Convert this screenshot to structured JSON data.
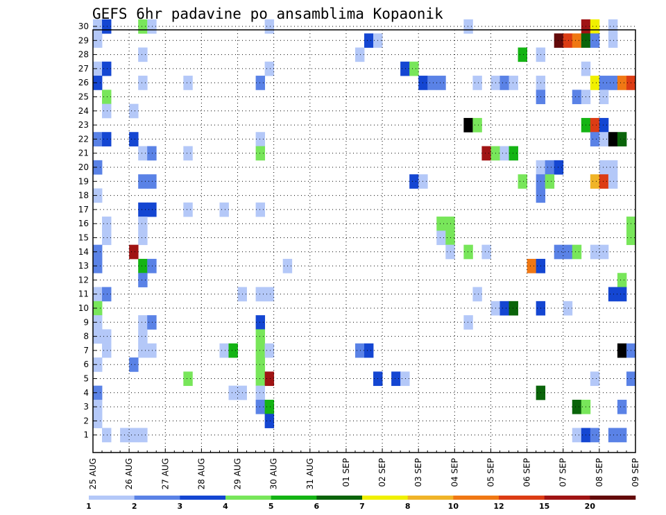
{
  "chart_data": {
    "type": "heatmap",
    "title": "GEFS 6hr padavine po ansamblima Kopaonik",
    "xlabel": "",
    "ylabel": "",
    "x_tick_labels": [
      "25 AUG",
      "26 AUG",
      "27 AUG",
      "28 AUG",
      "29 AUG",
      "30 AUG",
      "31 AUG",
      "01 SEP",
      "02 SEP",
      "03 SEP",
      "04 SEP",
      "05 SEP",
      "06 SEP",
      "07 SEP",
      "08 SEP",
      "09 SEP"
    ],
    "y_tick_labels": [
      "1",
      "2",
      "3",
      "4",
      "5",
      "6",
      "7",
      "8",
      "9",
      "10",
      "11",
      "12",
      "13",
      "14",
      "15",
      "16",
      "17",
      "18",
      "19",
      "20",
      "21",
      "22",
      "23",
      "24",
      "25",
      "26",
      "27",
      "28",
      "29",
      "30"
    ],
    "steps_per_day": 4,
    "n_steps": 60,
    "members": 30,
    "grid": true,
    "colorbar": {
      "labels": [
        "1",
        "2",
        "3",
        "4",
        "5",
        "6",
        "7",
        "8",
        "10",
        "12",
        "15",
        "20"
      ],
      "colors": [
        "#b4c8f8",
        "#5a82e6",
        "#1446d2",
        "#78e65a",
        "#14b414",
        "#0a640a",
        "#f0f000",
        "#f0b428",
        "#f07814",
        "#dc3c14",
        "#a01414",
        "#640a0a"
      ]
    },
    "cells": [
      [
        1,
        30,
        1
      ],
      [
        2,
        30,
        3
      ],
      [
        6,
        30,
        4
      ],
      [
        7,
        30,
        1
      ],
      [
        20,
        30,
        1
      ],
      [
        42,
        30,
        1
      ],
      [
        55,
        30,
        11
      ],
      [
        56,
        30,
        7
      ],
      [
        58,
        30,
        1
      ],
      [
        1,
        29,
        1
      ],
      [
        31,
        29,
        3
      ],
      [
        32,
        29,
        1
      ],
      [
        52,
        29,
        12
      ],
      [
        53,
        29,
        10
      ],
      [
        54,
        29,
        9
      ],
      [
        55,
        29,
        6
      ],
      [
        56,
        29,
        2
      ],
      [
        58,
        29,
        1
      ],
      [
        6,
        28,
        1
      ],
      [
        30,
        28,
        1
      ],
      [
        48,
        28,
        5
      ],
      [
        50,
        28,
        1
      ],
      [
        1,
        27,
        1
      ],
      [
        2,
        27,
        3
      ],
      [
        20,
        27,
        1
      ],
      [
        35,
        27,
        3
      ],
      [
        36,
        27,
        4
      ],
      [
        55,
        27,
        1
      ],
      [
        1,
        26,
        3
      ],
      [
        6,
        26,
        1
      ],
      [
        11,
        26,
        1
      ],
      [
        19,
        26,
        2
      ],
      [
        37,
        26,
        3
      ],
      [
        38,
        26,
        2
      ],
      [
        39,
        26,
        2
      ],
      [
        43,
        26,
        1
      ],
      [
        45,
        26,
        1
      ],
      [
        46,
        26,
        2
      ],
      [
        47,
        26,
        1
      ],
      [
        50,
        26,
        1
      ],
      [
        56,
        26,
        7
      ],
      [
        57,
        26,
        2
      ],
      [
        58,
        26,
        2
      ],
      [
        59,
        26,
        9
      ],
      [
        60,
        26,
        10
      ],
      [
        2,
        25,
        4
      ],
      [
        50,
        25,
        2
      ],
      [
        54,
        25,
        2
      ],
      [
        55,
        25,
        1
      ],
      [
        57,
        25,
        1
      ],
      [
        2,
        24,
        1
      ],
      [
        5,
        24,
        1
      ],
      [
        42,
        23,
        13
      ],
      [
        43,
        23,
        4
      ],
      [
        55,
        23,
        5
      ],
      [
        56,
        23,
        10
      ],
      [
        57,
        23,
        3
      ],
      [
        1,
        22,
        2
      ],
      [
        2,
        22,
        3
      ],
      [
        5,
        22,
        3
      ],
      [
        19,
        22,
        1
      ],
      [
        56,
        22,
        2
      ],
      [
        57,
        22,
        1
      ],
      [
        58,
        22,
        13
      ],
      [
        59,
        22,
        6
      ],
      [
        6,
        21,
        1
      ],
      [
        7,
        21,
        2
      ],
      [
        11,
        21,
        1
      ],
      [
        19,
        21,
        4
      ],
      [
        44,
        21,
        11
      ],
      [
        45,
        21,
        4
      ],
      [
        46,
        21,
        1
      ],
      [
        47,
        21,
        5
      ],
      [
        1,
        20,
        2
      ],
      [
        50,
        20,
        1
      ],
      [
        51,
        20,
        2
      ],
      [
        52,
        20,
        3
      ],
      [
        57,
        20,
        1
      ],
      [
        58,
        20,
        1
      ],
      [
        6,
        19,
        2
      ],
      [
        7,
        19,
        2
      ],
      [
        36,
        19,
        3
      ],
      [
        37,
        19,
        1
      ],
      [
        48,
        19,
        4
      ],
      [
        50,
        19,
        2
      ],
      [
        51,
        19,
        4
      ],
      [
        56,
        19,
        8
      ],
      [
        57,
        19,
        10
      ],
      [
        58,
        19,
        1
      ],
      [
        1,
        18,
        1
      ],
      [
        50,
        18,
        2
      ],
      [
        6,
        17,
        3
      ],
      [
        7,
        17,
        3
      ],
      [
        11,
        17,
        1
      ],
      [
        15,
        17,
        1
      ],
      [
        19,
        17,
        1
      ],
      [
        2,
        16,
        1
      ],
      [
        6,
        16,
        1
      ],
      [
        39,
        16,
        4
      ],
      [
        40,
        16,
        4
      ],
      [
        60,
        16,
        4
      ],
      [
        2,
        15,
        1
      ],
      [
        6,
        15,
        1
      ],
      [
        39,
        15,
        1
      ],
      [
        40,
        15,
        4
      ],
      [
        60,
        15,
        4
      ],
      [
        1,
        14,
        2
      ],
      [
        5,
        14,
        11
      ],
      [
        40,
        14,
        1
      ],
      [
        42,
        14,
        4
      ],
      [
        44,
        14,
        1
      ],
      [
        52,
        14,
        2
      ],
      [
        53,
        14,
        2
      ],
      [
        54,
        14,
        4
      ],
      [
        56,
        14,
        1
      ],
      [
        57,
        14,
        1
      ],
      [
        1,
        13,
        2
      ],
      [
        6,
        13,
        5
      ],
      [
        7,
        13,
        2
      ],
      [
        22,
        13,
        1
      ],
      [
        49,
        13,
        9
      ],
      [
        50,
        13,
        3
      ],
      [
        6,
        12,
        2
      ],
      [
        59,
        12,
        4
      ],
      [
        1,
        11,
        1
      ],
      [
        2,
        11,
        2
      ],
      [
        17,
        11,
        1
      ],
      [
        19,
        11,
        1
      ],
      [
        20,
        11,
        1
      ],
      [
        43,
        11,
        1
      ],
      [
        58,
        11,
        3
      ],
      [
        59,
        11,
        3
      ],
      [
        1,
        10,
        4
      ],
      [
        45,
        10,
        1
      ],
      [
        46,
        10,
        3
      ],
      [
        47,
        10,
        6
      ],
      [
        50,
        10,
        3
      ],
      [
        53,
        10,
        1
      ],
      [
        1,
        9,
        1
      ],
      [
        6,
        9,
        1
      ],
      [
        7,
        9,
        2
      ],
      [
        19,
        9,
        3
      ],
      [
        42,
        9,
        1
      ],
      [
        1,
        8,
        1
      ],
      [
        2,
        8,
        1
      ],
      [
        6,
        8,
        1
      ],
      [
        19,
        8,
        4
      ],
      [
        2,
        7,
        1
      ],
      [
        6,
        7,
        1
      ],
      [
        7,
        7,
        1
      ],
      [
        15,
        7,
        1
      ],
      [
        16,
        7,
        5
      ],
      [
        19,
        7,
        4
      ],
      [
        20,
        7,
        1
      ],
      [
        30,
        7,
        2
      ],
      [
        31,
        7,
        3
      ],
      [
        59,
        7,
        13
      ],
      [
        60,
        7,
        2
      ],
      [
        1,
        6,
        1
      ],
      [
        5,
        6,
        2
      ],
      [
        19,
        6,
        4
      ],
      [
        11,
        5,
        4
      ],
      [
        19,
        5,
        4
      ],
      [
        20,
        5,
        11
      ],
      [
        32,
        5,
        3
      ],
      [
        34,
        5,
        3
      ],
      [
        35,
        5,
        1
      ],
      [
        56,
        5,
        1
      ],
      [
        60,
        5,
        2
      ],
      [
        1,
        4,
        2
      ],
      [
        16,
        4,
        1
      ],
      [
        17,
        4,
        1
      ],
      [
        19,
        4,
        1
      ],
      [
        50,
        4,
        6
      ],
      [
        1,
        3,
        1
      ],
      [
        19,
        3,
        2
      ],
      [
        20,
        3,
        5
      ],
      [
        54,
        3,
        6
      ],
      [
        55,
        3,
        4
      ],
      [
        59,
        3,
        2
      ],
      [
        1,
        2,
        1
      ],
      [
        20,
        2,
        3
      ],
      [
        2,
        1,
        1
      ],
      [
        4,
        1,
        1
      ],
      [
        5,
        1,
        1
      ],
      [
        6,
        1,
        1
      ],
      [
        54,
        1,
        1
      ],
      [
        55,
        1,
        3
      ],
      [
        56,
        1,
        2
      ],
      [
        58,
        1,
        2
      ],
      [
        59,
        1,
        2
      ]
    ]
  }
}
